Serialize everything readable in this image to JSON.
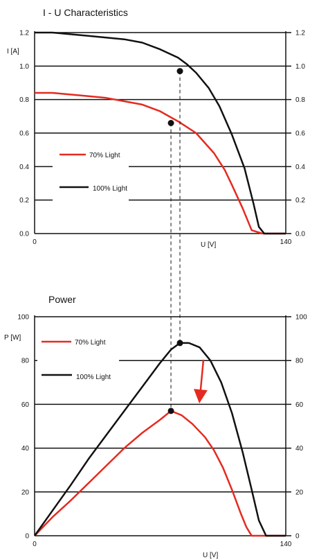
{
  "chart_data": [
    {
      "type": "line",
      "title": "I - U Characteristics",
      "ylabel": "I [A]",
      "xlabel": "U [V]",
      "xlim": [
        0,
        140
      ],
      "ylim": [
        0,
        1.2
      ],
      "x_ticks": [
        "0",
        "140"
      ],
      "y_ticks": [
        "0.0",
        "0.2",
        "0.4",
        "0.6",
        "0.8",
        "1.0",
        "1.2"
      ],
      "grid": "horizontal",
      "legend": "left",
      "series": [
        {
          "name": "70% Light",
          "color": "#e52a1f",
          "x": [
            0,
            10,
            20,
            30,
            40,
            50,
            60,
            70,
            80,
            90,
            100,
            106,
            110,
            116,
            121,
            127,
            130,
            140
          ],
          "y": [
            0.84,
            0.84,
            0.83,
            0.82,
            0.81,
            0.79,
            0.77,
            0.73,
            0.67,
            0.6,
            0.48,
            0.38,
            0.29,
            0.15,
            0.02,
            0,
            0,
            0
          ]
        },
        {
          "name": "100% Light",
          "color": "#111111",
          "x": [
            0,
            10,
            20,
            30,
            40,
            50,
            60,
            70,
            80,
            85,
            90,
            97,
            103,
            110,
            117,
            122,
            125,
            128,
            130,
            140
          ],
          "y": [
            1.2,
            1.2,
            1.19,
            1.18,
            1.17,
            1.16,
            1.14,
            1.1,
            1.05,
            1.01,
            0.96,
            0.87,
            0.76,
            0.59,
            0.39,
            0.18,
            0.04,
            0,
            0,
            0
          ]
        }
      ],
      "points": [
        {
          "x": 76,
          "y": 0.66,
          "series": "70% Light"
        },
        {
          "x": 81,
          "y": 0.97,
          "series": "100% Light"
        }
      ]
    },
    {
      "type": "line",
      "title": "Power",
      "ylabel": "P [W]",
      "xlabel": "U [V]",
      "xlim": [
        0,
        140
      ],
      "ylim": [
        0,
        100
      ],
      "x_ticks": [
        "0",
        "140"
      ],
      "y_ticks": [
        "0",
        "20",
        "40",
        "60",
        "80",
        "100"
      ],
      "grid": "horizontal",
      "legend": "top-left",
      "series": [
        {
          "name": "70% Light",
          "color": "#e52a1f",
          "x": [
            0,
            10,
            20,
            30,
            40,
            50,
            60,
            70,
            76,
            82,
            88,
            95,
            100,
            105,
            110,
            115,
            118,
            121,
            125,
            140
          ],
          "y": [
            0,
            8.5,
            16,
            24,
            32,
            40,
            47,
            53,
            57,
            55,
            51,
            45,
            39,
            31,
            21,
            10,
            4,
            0,
            0,
            0
          ]
        },
        {
          "name": "100% Light",
          "color": "#111111",
          "x": [
            0,
            10,
            20,
            30,
            40,
            50,
            60,
            70,
            76,
            81,
            86,
            92,
            98,
            104,
            110,
            116,
            121,
            125,
            129,
            135,
            140
          ],
          "y": [
            0,
            11.5,
            23,
            35,
            46,
            57,
            68,
            79,
            85,
            88,
            88,
            86,
            80,
            70,
            56,
            38,
            21,
            7,
            0,
            0,
            0
          ]
        }
      ],
      "points": [
        {
          "x": 76,
          "y": 57,
          "series": "70% Light"
        },
        {
          "x": 81,
          "y": 88,
          "series": "100% Light"
        }
      ]
    }
  ]
}
